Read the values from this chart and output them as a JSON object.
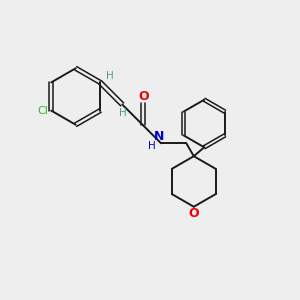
{
  "bg_color": "#eeeeee",
  "bond_color": "#1a1a1a",
  "cl_color": "#2db82d",
  "o_color": "#ee0000",
  "n_color": "#0000cc",
  "h_color": "#4a9a9a",
  "figsize": [
    3.0,
    3.0
  ],
  "dpi": 100,
  "xlim": [
    0,
    10
  ],
  "ylim": [
    0,
    10
  ]
}
